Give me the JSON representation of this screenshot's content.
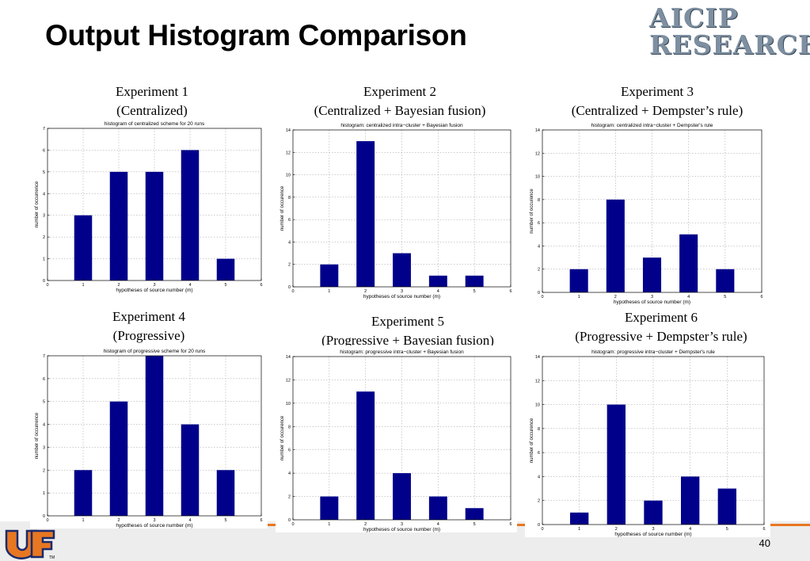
{
  "header": {
    "title": "Output Histogram Comparison"
  },
  "logo": {
    "line1": "AICIP",
    "line2": "RESEARCH"
  },
  "experiments": [
    {
      "line1": "Experiment 1",
      "line2": "(Centralized)"
    },
    {
      "line1": "Experiment 2",
      "line2": "(Centralized + Bayesian fusion)"
    },
    {
      "line1": "Experiment 3",
      "line2": "(Centralized + Dempster’s rule)"
    },
    {
      "line1": "Experiment 4",
      "line2": "(Progressive)"
    },
    {
      "line1": "Experiment 5",
      "line2": "(Progressive + Bayesian fusion)"
    },
    {
      "line1": "Experiment 6",
      "line2": "(Progressive + Dempster’s rule)"
    }
  ],
  "footer": {
    "page_number": "40",
    "trademark": "TM"
  },
  "colors": {
    "bar": "#00008b",
    "accent": "#e87722",
    "logo": "#7d8fa0"
  },
  "chart_data": [
    {
      "type": "bar",
      "title": "histogram of centralized scheme for 20 runs",
      "xlabel": "hypotheses of source number (m)",
      "ylabel": "number of occurrence",
      "x": [
        1,
        2,
        3,
        4,
        5
      ],
      "values": [
        3,
        5,
        5,
        6,
        1
      ],
      "xlim": [
        0,
        6
      ],
      "ylim": [
        0,
        7
      ],
      "xticks": [
        0,
        1,
        2,
        3,
        4,
        5,
        6
      ],
      "yticks": [
        0,
        1,
        2,
        3,
        4,
        5,
        6,
        7
      ],
      "grid": true
    },
    {
      "type": "bar",
      "title": "histogram: centralized intra−cluster + Bayesian fusion",
      "xlabel": "hypotheses of source number (m)",
      "ylabel": "number of occurence",
      "x": [
        1,
        2,
        3,
        4,
        5
      ],
      "values": [
        2,
        13,
        3,
        1,
        1
      ],
      "xlim": [
        0,
        6
      ],
      "ylim": [
        0,
        14
      ],
      "xticks": [
        0,
        1,
        2,
        3,
        4,
        5,
        6
      ],
      "yticks": [
        0,
        2,
        4,
        6,
        8,
        10,
        12,
        14
      ],
      "grid": true
    },
    {
      "type": "bar",
      "title": "histogram: centralized intra−cluster + Dempster's rule",
      "xlabel": "hypotheses of source number (m)",
      "ylabel": "number of occurence",
      "x": [
        1,
        2,
        3,
        4,
        5
      ],
      "values": [
        2,
        8,
        3,
        5,
        2
      ],
      "xlim": [
        0,
        6
      ],
      "ylim": [
        0,
        14
      ],
      "xticks": [
        0,
        1,
        2,
        3,
        4,
        5,
        6
      ],
      "yticks": [
        0,
        2,
        4,
        6,
        8,
        10,
        12,
        14
      ],
      "grid": true
    },
    {
      "type": "bar",
      "title": "histogram of progressive scheme for 20 runs",
      "xlabel": "hypotheses of source number (m)",
      "ylabel": "number of occurrence",
      "x": [
        1,
        2,
        3,
        4,
        5
      ],
      "values": [
        2,
        5,
        7,
        4,
        2
      ],
      "xlim": [
        0,
        6
      ],
      "ylim": [
        0,
        7
      ],
      "xticks": [
        0,
        1,
        2,
        3,
        4,
        5,
        6
      ],
      "yticks": [
        0,
        1,
        2,
        3,
        4,
        5,
        6,
        7
      ],
      "grid": true
    },
    {
      "type": "bar",
      "title": "histogram: progressive intra−cluster + Bayesian fusion",
      "xlabel": "hypotheses of source number (m)",
      "ylabel": "number of occurence",
      "x": [
        1,
        2,
        3,
        4,
        5
      ],
      "values": [
        2,
        11,
        4,
        2,
        1
      ],
      "xlim": [
        0,
        6
      ],
      "ylim": [
        0,
        14
      ],
      "xticks": [
        0,
        1,
        2,
        3,
        4,
        5,
        6
      ],
      "yticks": [
        0,
        2,
        4,
        6,
        8,
        10,
        12,
        14
      ],
      "grid": true
    },
    {
      "type": "bar",
      "title": "histogram: progressive intra−cluster + Dempster's rule",
      "xlabel": "hypotheses of source number (m)",
      "ylabel": "number of occurence",
      "x": [
        1,
        2,
        3,
        4,
        5
      ],
      "values": [
        1,
        10,
        2,
        4,
        3
      ],
      "xlim": [
        0,
        6
      ],
      "ylim": [
        0,
        14
      ],
      "xticks": [
        0,
        1,
        2,
        3,
        4,
        5,
        6
      ],
      "yticks": [
        0,
        2,
        4,
        6,
        8,
        10,
        12,
        14
      ],
      "grid": true
    }
  ]
}
